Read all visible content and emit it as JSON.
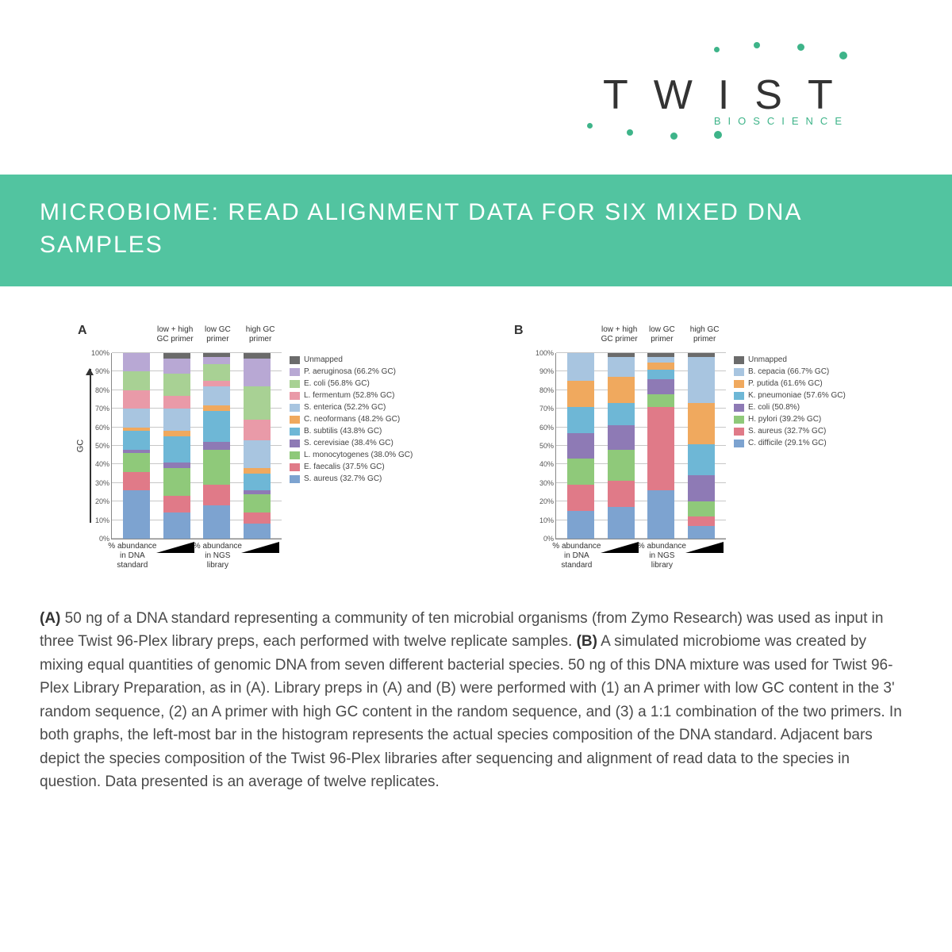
{
  "logo": {
    "text": "TWIST",
    "subtitle": "BIOSCIENCE",
    "dot_color": "#3eb489"
  },
  "title": "MICROBIOME: READ ALIGNMENT DATA FOR SIX MIXED DNA SAMPLES",
  "title_bg": "#52c4a0",
  "caption_A": "(A)",
  "caption_B": "(B)",
  "caption_text_1": " 50 ng of a DNA standard representing a community of ten microbial organisms (from Zymo Research) was used as input in three Twist 96-Plex library preps, each performed with twelve replicate samples. ",
  "caption_text_2": " A simulated microbiome was created by mixing equal quantities of genomic DNA from seven different bacterial species. 50 ng of this DNA mixture was used for Twist 96-Plex Library Preparation, as in (A). Library preps in (A) and (B) were performed with (1) an A primer with low GC content in the 3' random sequence, (2) an A primer with high GC content in the random sequence, and (3) a 1:1 combination of the two primers. In both graphs, the left-most bar in the histogram represents the actual species composition of the DNA standard. Adjacent bars depict the species composition of the Twist 96-Plex libraries after sequencing and alignment of read data to the species in question. Data presented is an average of twelve replicates.",
  "chart_common": {
    "ylim": [
      0,
      100
    ],
    "ytick_step": 10,
    "grid_color": "#999999",
    "column_headers": [
      "",
      "low + high GC primer",
      "low GC primer",
      "high GC primer"
    ],
    "xlabels": [
      "% abundance in DNA standard",
      "% abundance in NGS library"
    ],
    "gc_label": "GC"
  },
  "chartA": {
    "label": "A",
    "species": [
      {
        "name": "Unmapped",
        "color": "#6b6b6b"
      },
      {
        "name": "P. aeruginosa (66.2% GC)",
        "color": "#b8a8d4"
      },
      {
        "name": "E. coli (56.8% GC)",
        "color": "#a8d194"
      },
      {
        "name": "L. fermentum (52.8% GC)",
        "color": "#e99aa8"
      },
      {
        "name": "S. enterica (52.2% GC)",
        "color": "#a8c5e0"
      },
      {
        "name": "C. neoformans (48.2% GC)",
        "color": "#f0a95e"
      },
      {
        "name": "B. subtilis (43.8% GC)",
        "color": "#6eb7d6"
      },
      {
        "name": "S. cerevisiae (38.4% GC)",
        "color": "#8e7ab5"
      },
      {
        "name": "L. monocytogenes (38.0% GC)",
        "color": "#8fc97a"
      },
      {
        "name": "E. faecalis (37.5% GC)",
        "color": "#e07a88"
      },
      {
        "name": "S. aureus (32.7% GC)",
        "color": "#7da3d0"
      }
    ],
    "bars": [
      [
        0,
        10,
        10,
        10,
        10,
        2,
        10,
        2,
        10,
        10,
        26
      ],
      [
        3,
        8,
        12,
        7,
        12,
        3,
        14,
        3,
        15,
        9,
        14
      ],
      [
        2,
        4,
        9,
        3,
        10,
        3,
        17,
        4,
        19,
        11,
        18
      ],
      [
        3,
        15,
        18,
        11,
        15,
        3,
        9,
        2,
        10,
        6,
        8
      ]
    ]
  },
  "chartB": {
    "label": "B",
    "species": [
      {
        "name": "Unmapped",
        "color": "#6b6b6b"
      },
      {
        "name": "B. cepacia (66.7% GC)",
        "color": "#a8c5e0"
      },
      {
        "name": "P. putida (61.6% GC)",
        "color": "#f0a95e"
      },
      {
        "name": "K. pneumoniae (57.6% GC)",
        "color": "#6eb7d6"
      },
      {
        "name": "E. coli (50.8%)",
        "color": "#8e7ab5"
      },
      {
        "name": "H. pylori (39.2% GC)",
        "color": "#8fc97a"
      },
      {
        "name": "S. aureus (32.7% GC)",
        "color": "#e07a88"
      },
      {
        "name": "C. difficile (29.1% GC)",
        "color": "#7da3d0"
      }
    ],
    "bars": [
      [
        0,
        15,
        14,
        14,
        14,
        14,
        14,
        15
      ],
      [
        2,
        11,
        14,
        12,
        13,
        17,
        14,
        17
      ],
      [
        2,
        3,
        4,
        5,
        8,
        7,
        45,
        26
      ],
      [
        2,
        25,
        22,
        17,
        14,
        8,
        5,
        7
      ]
    ]
  }
}
